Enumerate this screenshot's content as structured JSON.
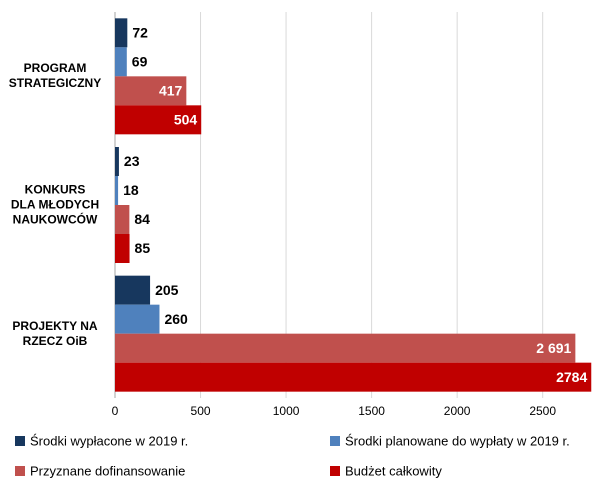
{
  "chart_data": {
    "type": "barh",
    "categories": [
      "PROGRAM\nSTRATEGICZNY",
      "KONKURS\nDLA MŁODYCH\nNAUKOWCÓW",
      "PROJEKTY NA\nRZECZ OiB"
    ],
    "series": [
      {
        "name": "Środki wypłacone w 2019 r.",
        "color": "#17375e",
        "values": [
          72,
          23,
          205
        ]
      },
      {
        "name": "Środki planowane do wypłaty w 2019 r.",
        "color": "#4f81bd",
        "values": [
          69,
          18,
          260
        ]
      },
      {
        "name": "Przyznane dofinansowanie",
        "color": "#c0504d",
        "values": [
          417,
          84,
          2691
        ],
        "value_labels": [
          "417",
          "84",
          "2 691"
        ]
      },
      {
        "name": "Budżet całkowity",
        "color": "#c00000",
        "values": [
          504,
          85,
          2784
        ]
      }
    ],
    "xlim": [
      0,
      2800
    ],
    "xticks": [
      0,
      500,
      1000,
      1500,
      2000,
      2500
    ],
    "grid": true,
    "legend": "bottom"
  }
}
